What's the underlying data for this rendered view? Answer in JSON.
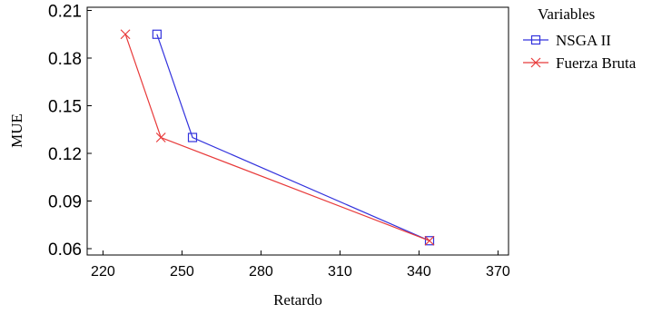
{
  "chart_data": {
    "type": "line",
    "xlabel": "Retardo",
    "ylabel": "MUE",
    "xlim": [
      214,
      374
    ],
    "ylim": [
      0.056,
      0.212
    ],
    "x_ticks": [
      220,
      250,
      280,
      310,
      340,
      370
    ],
    "y_ticks": [
      0.06,
      0.09,
      0.12,
      0.15,
      0.18,
      0.21
    ],
    "grid": false,
    "legend": {
      "title": "Variables",
      "placement": "outside-right"
    },
    "series": [
      {
        "name": "NSGA II",
        "color": "#3333dd",
        "marker": "square",
        "points": [
          [
            240.5,
            0.195
          ],
          [
            254,
            0.13
          ],
          [
            344,
            0.065
          ]
        ]
      },
      {
        "name": "Fuerza Bruta",
        "color": "#e83a3a",
        "marker": "x",
        "points": [
          [
            228.5,
            0.195
          ],
          [
            242,
            0.13
          ],
          [
            344,
            0.065
          ]
        ]
      }
    ]
  }
}
